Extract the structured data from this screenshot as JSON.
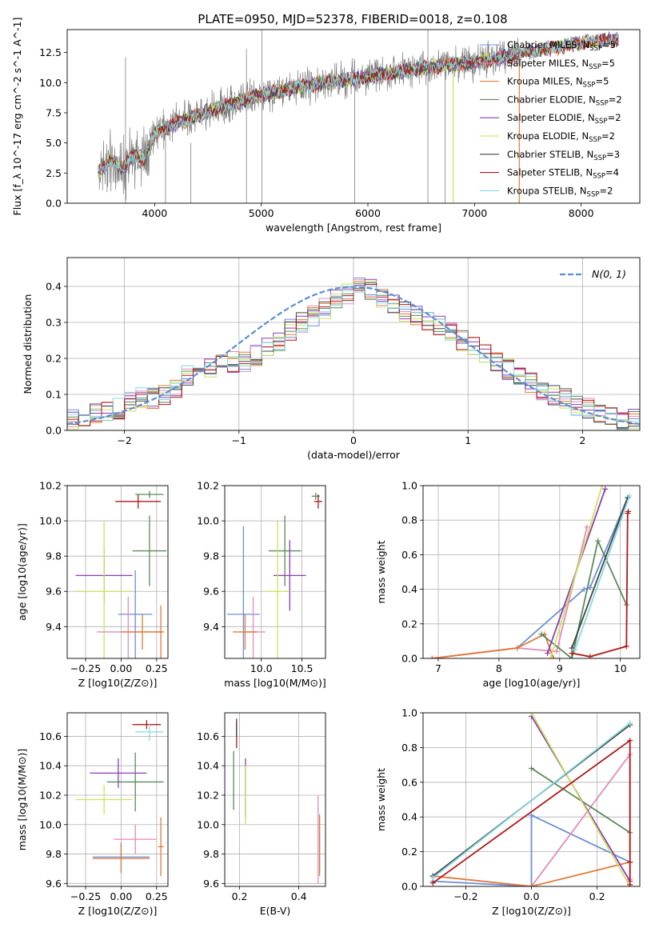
{
  "figure": {
    "title": "PLATE=0950, MJD=52378, FIBERID=0018, z=0.108"
  },
  "colors": {
    "chabrier_miles": "#6a8fd8",
    "salpeter_miles": "#e48bb6",
    "kroupa_miles": "#e07b39",
    "chabrier_elodie": "#5a8a5a",
    "salpeter_elodie": "#8e3bb5",
    "kroupa_elodie": "#c9e35c",
    "chabrier_stelib": "#444444",
    "salpeter_stelib": "#b01818",
    "kroupa_stelib": "#86d9e0",
    "data": "#808080",
    "normal": "#5b8ed6"
  },
  "chart_data": [
    {
      "id": "spectrum",
      "type": "line",
      "xlabel": "wavelength [Angstrom, rest frame]",
      "ylabel": "Flux [f_λ 10^-17 erg cm^-2 s^-1 A^-1]",
      "xlim": [
        3180,
        8550
      ],
      "ylim": [
        0,
        14.4
      ],
      "xticks": [
        4000,
        5000,
        6000,
        7000,
        8000
      ],
      "yticks": [
        0.0,
        2.5,
        5.0,
        7.5,
        10.0,
        12.5
      ],
      "ytick_labels": [
        "0.0",
        "2.5",
        "5.0",
        "7.5",
        "10.0",
        "12.5"
      ],
      "legend": "upper right",
      "legend_entries": [
        {
          "label": "Chabrier MILES, N",
          "sub": "SSP",
          "tail": "=5",
          "color_key": "chabrier_miles"
        },
        {
          "label": "Salpeter MILES, N",
          "sub": "SSP",
          "tail": "=5",
          "color_key": "salpeter_miles"
        },
        {
          "label": "Kroupa MILES, N",
          "sub": "SSP",
          "tail": "=5",
          "color_key": "kroupa_miles"
        },
        {
          "label": "Chabrier ELODIE, N",
          "sub": "SSP",
          "tail": "=2",
          "color_key": "chabrier_elodie"
        },
        {
          "label": "Salpeter ELODIE, N",
          "sub": "SSP",
          "tail": "=2",
          "color_key": "salpeter_elodie"
        },
        {
          "label": "Kroupa ELODIE, N",
          "sub": "SSP",
          "tail": "=2",
          "color_key": "kroupa_elodie"
        },
        {
          "label": "Chabrier STELIB, N",
          "sub": "SSP",
          "tail": "=3",
          "color_key": "chabrier_stelib"
        },
        {
          "label": "Salpeter STELIB, N",
          "sub": "SSP",
          "tail": "=4",
          "color_key": "salpeter_stelib"
        },
        {
          "label": "Kroupa STELIB, N",
          "sub": "SSP",
          "tail": "=2",
          "color_key": "kroupa_stelib"
        }
      ],
      "data_series": {
        "name": "data",
        "wavelength_range": [
          3470,
          7420
        ],
        "flux_range": [
          0,
          13.9
        ]
      },
      "model_anchors": {
        "x": [
          3470,
          3600,
          3700,
          3800,
          3900,
          4000,
          4200,
          4500,
          5000,
          5500,
          6000,
          6500,
          7000,
          7400,
          7500,
          8000,
          8300
        ],
        "y": [
          2.6,
          3.6,
          2.8,
          4.0,
          3.7,
          5.8,
          6.6,
          7.6,
          9.0,
          9.9,
          10.5,
          11.2,
          11.7,
          12.3,
          12.5,
          13.3,
          13.6
        ]
      },
      "emission_lines": [
        {
          "x": 3727,
          "top": 12.1
        },
        {
          "x": 4102,
          "top": 6.7
        },
        {
          "x": 4340,
          "top": 5.0
        },
        {
          "x": 4861,
          "top": 12.8
        },
        {
          "x": 5007,
          "top": 14.4
        },
        {
          "x": 5876,
          "top": 11.8
        },
        {
          "x": 6563,
          "top": 14.4
        },
        {
          "x": 6724,
          "top": 12.4
        }
      ]
    },
    {
      "id": "residuals",
      "type": "line",
      "xlabel": "(data-model)/error",
      "ylabel": "Normed distribution",
      "xlim": [
        -2.5,
        2.5
      ],
      "ylim": [
        0,
        0.48
      ],
      "xticks": [
        -2,
        -1,
        0,
        1,
        2
      ],
      "xtick_labels": [
        "−2",
        "−1",
        "0",
        "1",
        "2"
      ],
      "yticks": [
        0.0,
        0.1,
        0.2,
        0.3,
        0.4
      ],
      "ytick_labels": [
        "0.0",
        "0.1",
        "0.2",
        "0.3",
        "0.4"
      ],
      "legend_label": "N(0, 1)",
      "normal_curve": {
        "mean": 0,
        "sigma": 1
      },
      "hist_bins": {
        "start": -2.5,
        "width": 0.1,
        "count": 50
      },
      "hist_rough_shape": [
        0.03,
        0.04,
        0.05,
        0.05,
        0.06,
        0.08,
        0.09,
        0.09,
        0.1,
        0.12,
        0.15,
        0.16,
        0.17,
        0.18,
        0.19,
        0.19,
        0.21,
        0.23,
        0.25,
        0.28,
        0.3,
        0.32,
        0.34,
        0.36,
        0.38,
        0.4,
        0.39,
        0.37,
        0.35,
        0.33,
        0.32,
        0.3,
        0.29,
        0.27,
        0.25,
        0.23,
        0.21,
        0.19,
        0.17,
        0.15,
        0.13,
        0.11,
        0.1,
        0.09,
        0.07,
        0.06,
        0.05,
        0.04,
        0.03,
        0.03
      ]
    },
    {
      "id": "age_vs_Z",
      "type": "scatter",
      "xlabel": "Z [log10(Z/Z⊙)]",
      "ylabel": "age [log10(age/yr)]",
      "xlim": [
        -0.38,
        0.33
      ],
      "ylim": [
        9.22,
        10.2
      ],
      "xticks": [
        -0.25,
        0.0,
        0.25
      ],
      "xtick_labels": [
        "−0.25",
        "0.00",
        "0.25"
      ],
      "yticks": [
        9.4,
        9.6,
        9.8,
        10.0,
        10.2
      ],
      "points": [
        {
          "x": 0.12,
          "y": 10.11,
          "xerr": 0.16,
          "yerr": 0.04,
          "color_key": "salpeter_stelib"
        },
        {
          "x": 0.2,
          "y": 10.15,
          "xerr": 0.1,
          "yerr": 0.02,
          "color_key": "chabrier_elodie"
        },
        {
          "x": 0.2,
          "y": 9.83,
          "xerr": 0.12,
          "yerr": 0.2,
          "color_key": "chabrier_elodie"
        },
        {
          "x": -0.12,
          "y": 9.69,
          "xerr": 0.2,
          "yerr": 0.15,
          "color_key": "salpeter_elodie"
        },
        {
          "x": -0.12,
          "y": 9.6,
          "xerr": 0.2,
          "yerr": 0.4,
          "color_key": "kroupa_elodie"
        },
        {
          "x": 0.1,
          "y": 9.47,
          "xerr": 0.12,
          "yerr": 0.25,
          "color_key": "chabrier_miles"
        },
        {
          "x": 0.05,
          "y": 9.37,
          "xerr": 0.22,
          "yerr": 0.2,
          "color_key": "salpeter_miles"
        },
        {
          "x": 0.15,
          "y": 9.37,
          "xerr": 0.15,
          "yerr": 0.1,
          "color_key": "kroupa_miles"
        },
        {
          "x": 0.28,
          "y": 9.37,
          "xerr": 0.02,
          "yerr": 0.15,
          "color_key": "kroupa_miles"
        }
      ]
    },
    {
      "id": "age_vs_mass",
      "type": "scatter",
      "xlabel": "mass [log10(M/M⊙)]",
      "ylabel": "",
      "xlim": [
        9.55,
        10.79
      ],
      "ylim": [
        9.22,
        10.2
      ],
      "xticks": [
        10.0,
        10.5
      ],
      "xtick_labels": [
        "10.0",
        "10.5"
      ],
      "yticks": [
        9.4,
        9.6,
        9.8,
        10.0,
        10.2
      ],
      "points": [
        {
          "x": 10.67,
          "y": 10.14,
          "xerr": 0.05,
          "yerr": 0.02,
          "color_key": "chabrier_elodie"
        },
        {
          "x": 10.7,
          "y": 10.11,
          "xerr": 0.05,
          "yerr": 0.04,
          "color_key": "salpeter_stelib"
        },
        {
          "x": 10.29,
          "y": 9.83,
          "xerr": 0.2,
          "yerr": 0.2,
          "color_key": "chabrier_elodie"
        },
        {
          "x": 10.35,
          "y": 9.69,
          "xerr": 0.2,
          "yerr": 0.2,
          "color_key": "salpeter_elodie"
        },
        {
          "x": 10.2,
          "y": 9.6,
          "xerr": 0.15,
          "yerr": 0.4,
          "color_key": "kroupa_elodie"
        },
        {
          "x": 9.78,
          "y": 9.47,
          "xerr": 0.2,
          "yerr": 0.5,
          "color_key": "chabrier_miles"
        },
        {
          "x": 9.9,
          "y": 9.37,
          "xerr": 0.15,
          "yerr": 0.2,
          "color_key": "salpeter_miles"
        },
        {
          "x": 9.8,
          "y": 9.37,
          "xerr": 0.15,
          "yerr": 0.1,
          "color_key": "kroupa_miles"
        }
      ]
    },
    {
      "id": "massweight_vs_age",
      "type": "line",
      "xlabel": "age [log10(age/yr)]",
      "ylabel": "mass weight",
      "xlim": [
        6.75,
        10.32
      ],
      "ylim": [
        0,
        1
      ],
      "xticks": [
        7,
        8,
        9,
        10
      ],
      "yticks": [
        0.0,
        0.2,
        0.4,
        0.6,
        0.8,
        1.0
      ],
      "ytick_labels": [
        "0.0",
        "0.2",
        "0.4",
        "0.6",
        "0.8",
        "1.0"
      ],
      "series": [
        {
          "color_key": "chabrier_miles",
          "x": [
            6.9,
            8.3,
            9.4,
            9.5,
            10.12
          ],
          "y": [
            0.0,
            0.06,
            0.4,
            0.41,
            0.93
          ]
        },
        {
          "color_key": "salpeter_miles",
          "x": [
            6.9,
            8.3,
            8.95,
            9.45
          ],
          "y": [
            0.0,
            0.06,
            0.04,
            0.76
          ]
        },
        {
          "color_key": "kroupa_miles",
          "x": [
            6.9,
            8.3,
            8.75,
            8.9
          ],
          "y": [
            0.0,
            0.06,
            0.14,
            0.0
          ]
        },
        {
          "color_key": "chabrier_elodie",
          "x": [
            8.7,
            9.2,
            9.63,
            10.1
          ],
          "y": [
            0.14,
            0.0,
            0.68,
            0.31
          ]
        },
        {
          "color_key": "salpeter_elodie",
          "x": [
            8.8,
            9.75
          ],
          "y": [
            0.03,
            0.98
          ]
        },
        {
          "color_key": "kroupa_elodie",
          "x": [
            8.85,
            9.7
          ],
          "y": [
            0.0,
            1.0
          ]
        },
        {
          "color_key": "chabrier_stelib",
          "x": [
            9.2,
            10.12
          ],
          "y": [
            0.06,
            0.93
          ]
        },
        {
          "color_key": "salpeter_stelib",
          "x": [
            9.2,
            9.5,
            10.1,
            10.12,
            10.13
          ],
          "y": [
            0.03,
            0.01,
            0.07,
            0.84,
            0.85
          ]
        },
        {
          "color_key": "kroupa_stelib",
          "x": [
            9.25,
            10.15
          ],
          "y": [
            0.05,
            0.94
          ]
        }
      ]
    },
    {
      "id": "mass_vs_Z",
      "type": "scatter",
      "xlabel": "Z [log10(Z/Z⊙)]",
      "ylabel": "mass [log10(M/M⊙)]",
      "xlim": [
        -0.38,
        0.33
      ],
      "ylim": [
        9.58,
        10.76
      ],
      "xticks": [
        -0.25,
        0.0,
        0.25
      ],
      "xtick_labels": [
        "−0.25",
        "0.00",
        "0.25"
      ],
      "yticks": [
        9.6,
        9.8,
        10.0,
        10.2,
        10.4,
        10.6
      ],
      "points": [
        {
          "x": 0.18,
          "y": 10.68,
          "xerr": 0.1,
          "yerr": 0.03,
          "color_key": "salpeter_stelib"
        },
        {
          "x": 0.2,
          "y": 10.63,
          "xerr": 0.1,
          "yerr": 0.06,
          "color_key": "kroupa_stelib"
        },
        {
          "x": -0.02,
          "y": 10.35,
          "xerr": 0.2,
          "yerr": 0.1,
          "color_key": "salpeter_elodie"
        },
        {
          "x": 0.1,
          "y": 10.29,
          "xerr": 0.2,
          "yerr": 0.2,
          "color_key": "chabrier_elodie"
        },
        {
          "x": -0.12,
          "y": 10.17,
          "xerr": 0.2,
          "yerr": 0.1,
          "color_key": "kroupa_elodie"
        },
        {
          "x": 0.1,
          "y": 9.9,
          "xerr": 0.15,
          "yerr": 0.1,
          "color_key": "salpeter_miles"
        },
        {
          "x": 0.0,
          "y": 9.78,
          "xerr": 0.2,
          "yerr": 0.1,
          "color_key": "chabrier_miles"
        },
        {
          "x": 0.0,
          "y": 9.77,
          "xerr": 0.2,
          "yerr": 0.1,
          "color_key": "kroupa_miles"
        },
        {
          "x": 0.28,
          "y": 9.85,
          "xerr": 0.02,
          "yerr": 0.2,
          "color_key": "kroupa_miles"
        }
      ]
    },
    {
      "id": "mass_vs_EBV",
      "type": "scatter",
      "xlabel": "E(B-V)",
      "ylabel": "",
      "xlim": [
        0.15,
        0.49
      ],
      "ylim": [
        9.58,
        10.76
      ],
      "xticks": [
        0.2,
        0.4
      ],
      "xtick_labels": [
        "0.2",
        "0.4"
      ],
      "yticks": [
        9.6,
        9.8,
        10.0,
        10.2,
        10.4,
        10.6
      ],
      "points": [
        {
          "x": 0.19,
          "y": 10.62,
          "xerr": 0.0,
          "yerr": 0.1,
          "color_key": "salpeter_stelib"
        },
        {
          "x": 0.19,
          "y": 10.65,
          "xerr": 0.0,
          "yerr": 0.05,
          "color_key": "chabrier_stelib"
        },
        {
          "x": 0.18,
          "y": 10.3,
          "xerr": 0.0,
          "yerr": 0.2,
          "color_key": "chabrier_elodie"
        },
        {
          "x": 0.22,
          "y": 10.25,
          "xerr": 0.0,
          "yerr": 0.2,
          "color_key": "salpeter_elodie"
        },
        {
          "x": 0.22,
          "y": 10.2,
          "xerr": 0.0,
          "yerr": 0.2,
          "color_key": "kroupa_elodie"
        },
        {
          "x": 0.47,
          "y": 9.87,
          "xerr": 0.0,
          "yerr": 0.2,
          "color_key": "chabrier_miles"
        },
        {
          "x": 0.465,
          "y": 9.9,
          "xerr": 0.0,
          "yerr": 0.3,
          "color_key": "salpeter_miles"
        },
        {
          "x": 0.47,
          "y": 9.85,
          "xerr": 0.0,
          "yerr": 0.2,
          "color_key": "kroupa_miles"
        }
      ]
    },
    {
      "id": "massweight_vs_Z",
      "type": "line",
      "xlabel": "Z [log10(Z/Z⊙)]",
      "ylabel": "mass weight",
      "xlim": [
        -0.33,
        0.33
      ],
      "ylim": [
        0,
        1
      ],
      "xticks": [
        -0.2,
        0.0,
        0.2
      ],
      "xtick_labels": [
        "−0.2",
        "0.0",
        "0.2"
      ],
      "yticks": [
        0.0,
        0.2,
        0.4,
        0.6,
        0.8,
        1.0
      ],
      "ytick_labels": [
        "0.0",
        "0.2",
        "0.4",
        "0.6",
        "0.8",
        "1.0"
      ],
      "series": [
        {
          "color_key": "chabrier_miles",
          "x": [
            -0.3,
            0.0,
            0.0,
            0.3
          ],
          "y": [
            0.03,
            0.0,
            0.41,
            0.14
          ]
        },
        {
          "color_key": "salpeter_miles",
          "x": [
            -0.3,
            0.0,
            0.3,
            0.3
          ],
          "y": [
            0.06,
            0.0,
            0.76,
            0.04
          ]
        },
        {
          "color_key": "kroupa_miles",
          "x": [
            -0.3,
            0.0,
            0.3
          ],
          "y": [
            0.06,
            0.0,
            0.14
          ]
        },
        {
          "color_key": "chabrier_elodie",
          "x": [
            0.0,
            0.3
          ],
          "y": [
            0.68,
            0.31
          ]
        },
        {
          "color_key": "salpeter_elodie",
          "x": [
            0.0,
            0.3
          ],
          "y": [
            0.98,
            0.03
          ]
        },
        {
          "color_key": "kroupa_elodie",
          "x": [
            0.0,
            0.3
          ],
          "y": [
            1.0,
            0.0
          ]
        },
        {
          "color_key": "chabrier_stelib",
          "x": [
            -0.3,
            0.3
          ],
          "y": [
            0.06,
            0.93
          ]
        },
        {
          "color_key": "salpeter_stelib",
          "x": [
            -0.3,
            0.3,
            0.3,
            0.3
          ],
          "y": [
            0.02,
            0.84,
            0.14,
            0.01
          ]
        },
        {
          "color_key": "kroupa_stelib",
          "x": [
            -0.3,
            0.3
          ],
          "y": [
            0.05,
            0.94
          ]
        }
      ]
    }
  ]
}
